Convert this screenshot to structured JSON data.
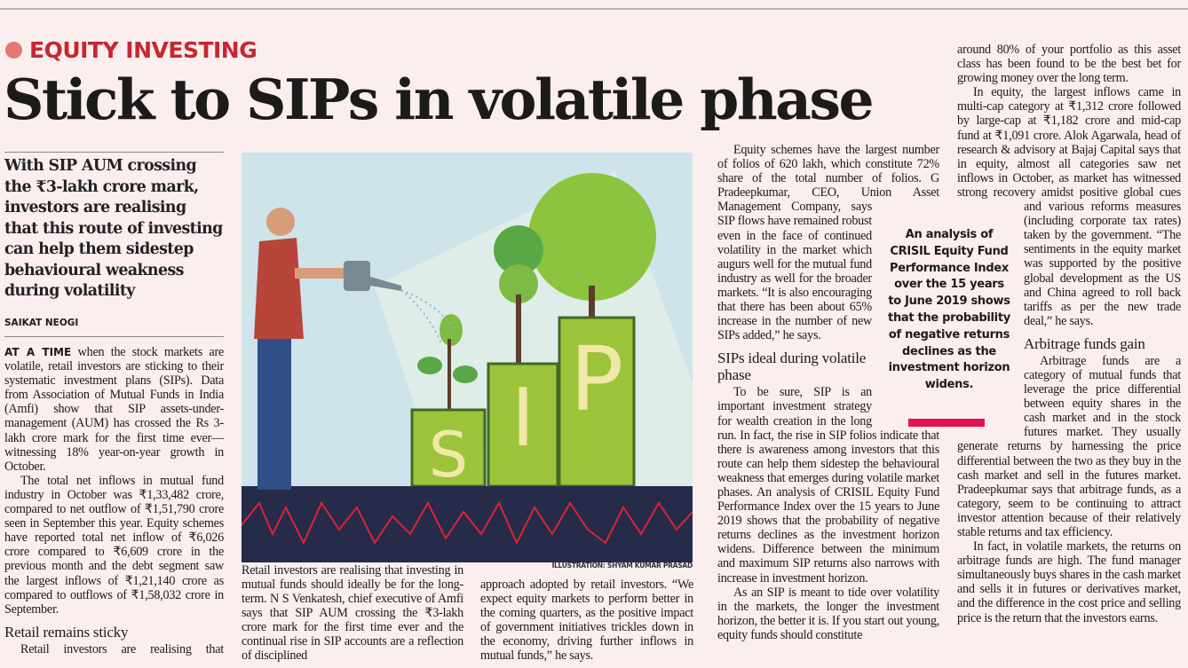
{
  "kicker": "EQUITY INVESTING",
  "headline": "Stick to SIPs in volatile phase",
  "deck": "With SIP AUM crossing the ₹3-lakh crore mark, investors are realising that this route of investing can help them sidestep behavioural weakness during volatility",
  "byline": "SAIKAT NEOGI",
  "illustration": {
    "credit": "ILLUSTRATION: SHYAM KUMAR PRASAD",
    "letters": [
      "S",
      "I",
      "P"
    ],
    "colors": {
      "sky": "#cfe4ea",
      "ground": "#262b4a",
      "line": "#d9252f",
      "bar": "#9cc43a",
      "tree": "#5aa845"
    }
  },
  "pull_quote": "An analysis of CRISIL Equity Fund Performance Index over the 15 years to June 2019 shows that the probability of negative returns declines as the investment horizon widens.",
  "accent_color": "#c8262e",
  "body": {
    "lead_in": "AT A TIME",
    "p1": " when the stock markets are volatile, retail investors are sticking to their systematic investment plans (SIPs). Data from Association of Mutual Funds in India (Amfi) show that SIP assets-under-management (AUM) has crossed the Rs 3-lakh crore mark for the first time ever—witnessing 18% year-on-year growth in October.",
    "p2": "The total net inflows in mutual fund industry in October was ₹1,33,482 crore, compared to net outflow of ₹1,51,790 crore seen in September this year. Equity schemes have reported total net inflow of ₹6,026 crore compared to ₹6,609 crore in the previous month and the debt segment saw the largest inflows of ₹1,21,140 crore as compared to outflows of ₹1,58,032 crore in September.",
    "sub1": "Retail remains sticky",
    "p3": "Retail investors are realising that investing in mutual funds should ideally be for the long-term. N S Venkatesh, chief executive of Amfi says that SIP AUM crossing the ₹3-lakh crore mark for the first time ever and the continual rise in SIP accounts are a reflection of disciplined",
    "p3b": "approach adopted by retail investors. “We expect equity markets to perform better in the coming quarters, as the positive impact of government initiatives trickles down in the economy, driving further inflows in mutual funds,” he says.",
    "p4": "Equity schemes have the largest number of folios of 620 lakh, which constitute 72% share of the total number of folios. G Pradeepkumar, CEO, Union Asset Management Company, says SIP flows have remained robust even in the face of continued volatility in the market which augurs well for the mutual fund industry as well for the broader markets. “It is also encouraging that there has been about 65% increase in the number of new SIPs added,” he says.",
    "sub2": "SIPs ideal during volatile phase",
    "p5": "To be sure, SIP is an important investment strategy for wealth creation in the long run. In fact, the rise in SIP folios indicate that there is awareness among investors that this route can help them sidestep the behavioural weakness that emerges during volatile market phases. An analysis of CRISIL Equity Fund Performance Index over the 15 years to June 2019 shows that the probability of negative returns declines as the investment horizon widens. Difference between the minimum and maximum SIP returns also narrows with increase in investment horizon.",
    "p6": "As an SIP is meant to tide over volatility in the markets, the longer the investment horizon, the better it is. If you start out young, equity funds should constitute",
    "p6b": "around 80% of your portfolio as this asset class has been found to be the best bet for growing money over the long term.",
    "p7": "In equity, the largest inflows came in multi-cap category at ₹1,312 crore followed by large-cap at ₹1,182 crore and mid-cap fund at ₹1,091 crore. Alok Agarwala, head of research & advisory at Bajaj Capital says that in equity, almost all categories saw net inflows in October, as market has witnessed strong recovery amidst positive global cues and various reforms measures (including corporate tax rates) taken by the government. “The sentiments in the equity market was supported by the positive global development as the US and China agreed to roll back tariffs as per the new trade deal,” he says.",
    "sub3": "Arbitrage funds gain",
    "p8": "Arbitrage funds are a category of mutual funds that leverage the price differential between equity shares in the cash market and in the stock futures market. They usually generate returns by harnessing the price differential between the two as they buy in the cash market and sell in the futures market. Pradeepkumar says that arbitrage funds, as a category, seem to be continuing to attract investor attention because of their relatively stable returns and tax efficiency.",
    "p9": "In fact, in volatile markets, the returns on arbitrage funds are high. The fund manager simultaneously buys shares in the cash market and sells it in futures or derivatives market, and the difference in the cost price and selling price is the return that the investors earns."
  }
}
